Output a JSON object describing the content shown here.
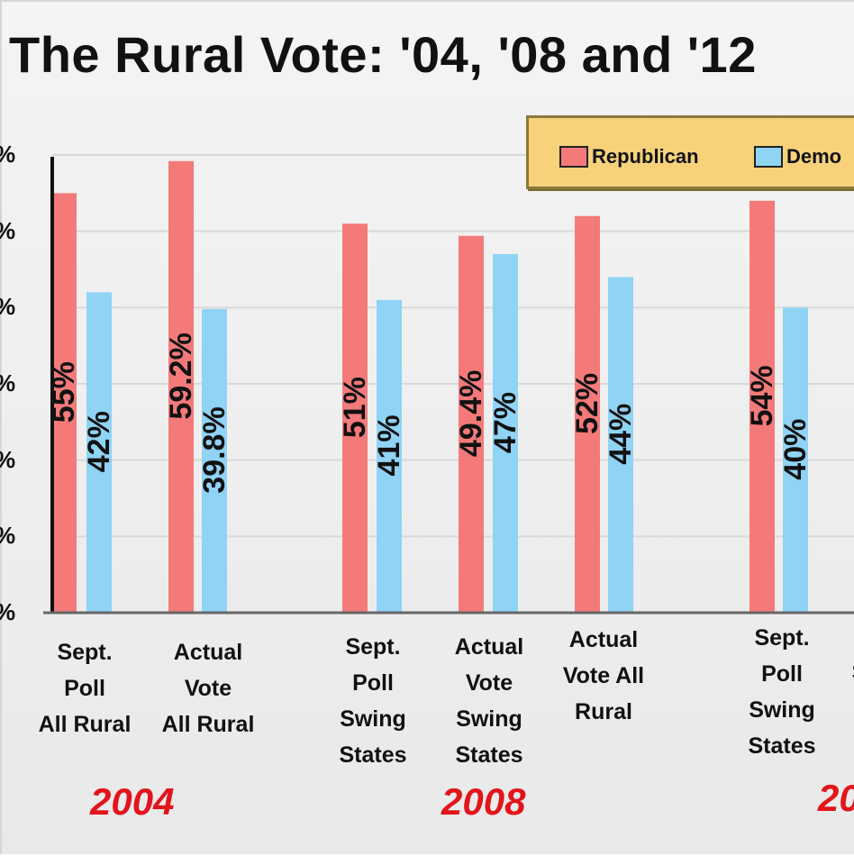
{
  "chart_data": {
    "type": "bar",
    "title": "The Rural Vote: '04, '08 and '12",
    "categories": [
      "Sept. Poll All Rural",
      "Actual Vote All Rural",
      "Sept. Poll Swing States",
      "Actual Vote Swing States",
      "Actual Vote All Rural",
      "Sept. Poll Swing States",
      "S"
    ],
    "category_lines": [
      [
        "Sept.",
        "Poll",
        "All Rural"
      ],
      [
        "Actual",
        "Vote",
        "All Rural"
      ],
      [
        "Sept.",
        "Poll",
        "Swing",
        "States"
      ],
      [
        "Actual",
        "Vote",
        "Swing",
        "States"
      ],
      [
        "Actual",
        "Vote All",
        "Rural"
      ],
      [
        "Sept.",
        "Poll",
        "Swing",
        "States"
      ],
      [
        "S"
      ]
    ],
    "groups": [
      {
        "label": "2004",
        "categories": [
          0,
          1
        ]
      },
      {
        "label": "2008",
        "categories": [
          2,
          3,
          4
        ]
      },
      {
        "label": "20",
        "categories": [
          5,
          6
        ]
      }
    ],
    "series": [
      {
        "name": "Republican",
        "color": "#f47a7a",
        "values": [
          55,
          59.2,
          51,
          49.4,
          52,
          54,
          null
        ],
        "labels": [
          "55%",
          "59.2%",
          "51%",
          "49.4%",
          "52%",
          "54%",
          ""
        ]
      },
      {
        "name": "Demo",
        "color": "#8fd3f5",
        "values": [
          42,
          39.8,
          41,
          47,
          44,
          40,
          null
        ],
        "labels": [
          "42%",
          "39.8%",
          "41%",
          "47%",
          "44%",
          "40%",
          ""
        ]
      }
    ],
    "ylim": [
      0,
      60
    ],
    "y_tick_label": "%",
    "grid": true,
    "legend_position": "top-right"
  }
}
